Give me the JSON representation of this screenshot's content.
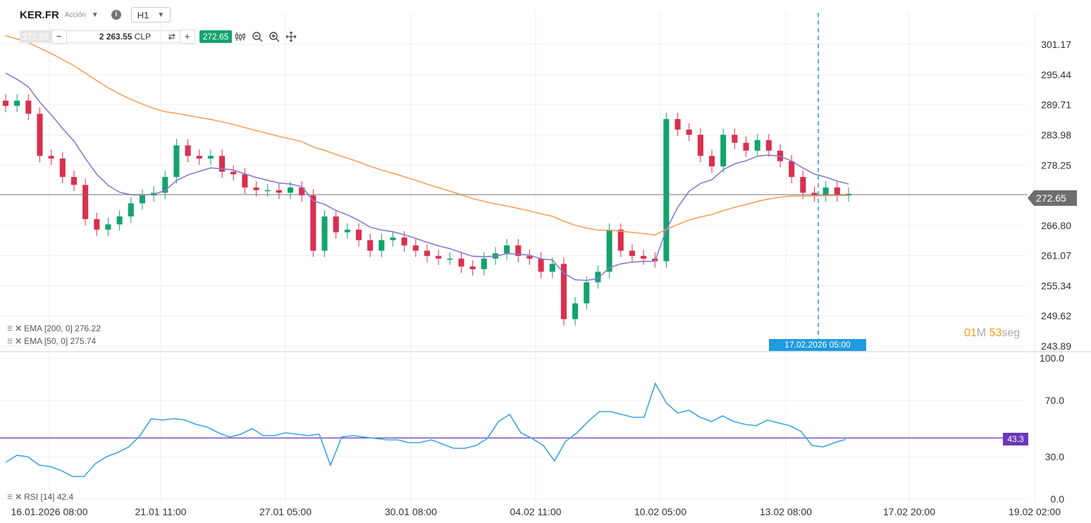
{
  "header": {
    "symbol": "KER.FR",
    "instrument_type": "Acción",
    "timeframe": "H1"
  },
  "toolbar": {
    "price_left": "272.65",
    "minus": "−",
    "quantity_value": "2 263.55",
    "quantity_currency": "CLP",
    "plus": "+",
    "price_right": "272.65"
  },
  "indicators": {
    "ema200_label": "EMA [200, 0] 276.22",
    "ema50_label": "EMA [50, 0] 275.74",
    "rsi_label": "RSI [14] 42.4"
  },
  "timer": {
    "min_value": "01",
    "min_unit": "M",
    "sec_value": "53",
    "sec_unit": "seg"
  },
  "crosshair_date": "17.02.2026 05:00",
  "current_price_tag": "272.65",
  "rsi_value_tag": "43.3",
  "colors": {
    "up": "#13a36c",
    "down": "#d9304f",
    "ema200": "#f5a25d",
    "ema50": "#8a7bd1",
    "rsi": "#3da5e8",
    "rsi_level": "#6a38b6",
    "crosshair": "#1f9be0"
  },
  "chart_data": [
    {
      "type": "candlestick",
      "title": "KER.FR H1",
      "y_ticks": [
        "301.17",
        "295.44",
        "289.71",
        "283.98",
        "278.25",
        "272.65",
        "266.80",
        "261.07",
        "255.34",
        "249.62",
        "243.89"
      ],
      "ylim": [
        243.89,
        301.17
      ],
      "x_ticks": [
        "16.01.2026 08:00",
        "21.01 11:00",
        "27.01 05:00",
        "30.01 08:00",
        "04.02 11:00",
        "10.02 05:00",
        "13.02 08:00",
        "17.02 20:00",
        "19.02 02:00"
      ],
      "current_price": 272.65,
      "series": [
        {
          "name": "EMA [200, 0]",
          "last": 276.22
        },
        {
          "name": "EMA [50, 0]",
          "last": 275.74
        }
      ],
      "candles_close_approx": [
        289.5,
        290.5,
        288,
        280,
        279.5,
        276,
        274.5,
        268,
        266,
        267,
        268.5,
        271,
        272.5,
        273,
        276,
        282,
        280,
        279.5,
        280,
        277,
        276.5,
        274,
        273.5,
        273.5,
        273,
        274,
        272.5,
        262,
        268.5,
        265.5,
        266,
        264,
        262,
        264,
        264.5,
        263,
        262,
        261,
        260.5,
        260.5,
        259,
        258.5,
        260.5,
        261.5,
        263,
        261,
        260.5,
        258,
        259.5,
        249,
        252,
        256,
        258,
        266,
        262,
        261,
        260.5,
        260,
        287,
        285,
        284,
        280,
        278,
        284,
        282.5,
        281,
        283,
        281,
        279,
        276,
        273,
        272.5,
        274,
        272.5,
        272.8
      ]
    },
    {
      "type": "line",
      "title": "RSI [14]",
      "y_ticks": [
        "100.0",
        "70.0",
        "30.0",
        "0.0"
      ],
      "ylim": [
        0,
        100
      ],
      "level": 43.3,
      "last": 42.4,
      "values": [
        26,
        31,
        30,
        24,
        23,
        20,
        16,
        16,
        25,
        30,
        33,
        37,
        45,
        57,
        56,
        57,
        56,
        53,
        51,
        47,
        44,
        46,
        50,
        45,
        45,
        47,
        46,
        45,
        46,
        24,
        44,
        45,
        44,
        43,
        42,
        42,
        40,
        40,
        42,
        39,
        36,
        36,
        38,
        43,
        55,
        60,
        47,
        43,
        38,
        27,
        41,
        47,
        55,
        62,
        62,
        60,
        58,
        58,
        82,
        68,
        61,
        63,
        58,
        55,
        59,
        55,
        53,
        52,
        56,
        54,
        52,
        48,
        38,
        37,
        40,
        42.4
      ]
    }
  ]
}
